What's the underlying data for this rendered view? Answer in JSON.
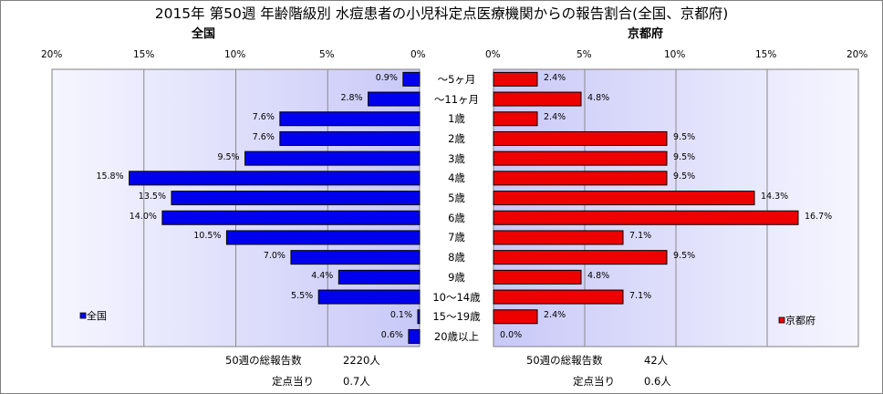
{
  "title": "2015年 第50週 年齢階級別 水痘患者の小児科定点医療機関からの報告割合(全国、京都府)",
  "colors": {
    "national": "#0000ee",
    "kyoto": "#ee0000",
    "plot_bg_light": "#f6f6ff",
    "plot_bg_dark": "#c8c8f8"
  },
  "chart_data": [
    {
      "type": "bar",
      "orientation": "horizontal",
      "panel_title": "全国",
      "direction": "right-to-left",
      "categories": [
        "～5ヶ月",
        "～11ヶ月",
        "1歳",
        "2歳",
        "3歳",
        "4歳",
        "5歳",
        "6歳",
        "7歳",
        "8歳",
        "9歳",
        "10～14歳",
        "15～19歳",
        "20歳以上"
      ],
      "series": [
        {
          "name": "全国",
          "values": [
            0.9,
            2.8,
            7.6,
            7.6,
            9.5,
            15.8,
            13.5,
            14.0,
            10.5,
            7.0,
            4.4,
            5.5,
            0.1,
            0.6
          ],
          "labels": [
            "0.9%",
            "2.8%",
            "7.6%",
            "7.6%",
            "9.5%",
            "15.8%",
            "13.5%",
            "14.0%",
            "10.5%",
            "7.0%",
            "4.4%",
            "5.5%",
            "0.1%",
            "0.6%"
          ]
        }
      ],
      "xlim": [
        0,
        20
      ],
      "tick_labels": [
        "20%",
        "15%",
        "10%",
        "5%",
        "0%"
      ],
      "legend_position": "bottom-left",
      "grid": true
    },
    {
      "type": "bar",
      "orientation": "horizontal",
      "panel_title": "京都府",
      "direction": "left-to-right",
      "categories": [
        "～5ヶ月",
        "～11ヶ月",
        "1歳",
        "2歳",
        "3歳",
        "4歳",
        "5歳",
        "6歳",
        "7歳",
        "8歳",
        "9歳",
        "10～14歳",
        "15～19歳",
        "20歳以上"
      ],
      "series": [
        {
          "name": "京都府",
          "values": [
            2.4,
            4.8,
            2.4,
            9.5,
            9.5,
            9.5,
            14.3,
            16.7,
            7.1,
            9.5,
            4.8,
            7.1,
            2.4,
            0.0
          ],
          "labels": [
            "2.4%",
            "4.8%",
            "2.4%",
            "9.5%",
            "9.5%",
            "9.5%",
            "14.3%",
            "16.7%",
            "7.1%",
            "9.5%",
            "4.8%",
            "7.1%",
            "2.4%",
            "0.0%"
          ]
        }
      ],
      "xlim": [
        0,
        20
      ],
      "tick_labels": [
        "0%",
        "5%",
        "10%",
        "15%",
        "20%"
      ],
      "legend_position": "bottom-right",
      "grid": true
    }
  ],
  "footer": {
    "national_total_label": "50週の総報告数",
    "national_total_value": "2220人",
    "national_per_label": "定点当り",
    "national_per_value": "0.7人",
    "kyoto_total_label": "50週の総報告数",
    "kyoto_total_value": "42人",
    "kyoto_per_label": "定点当り",
    "kyoto_per_value": "0.6人"
  }
}
